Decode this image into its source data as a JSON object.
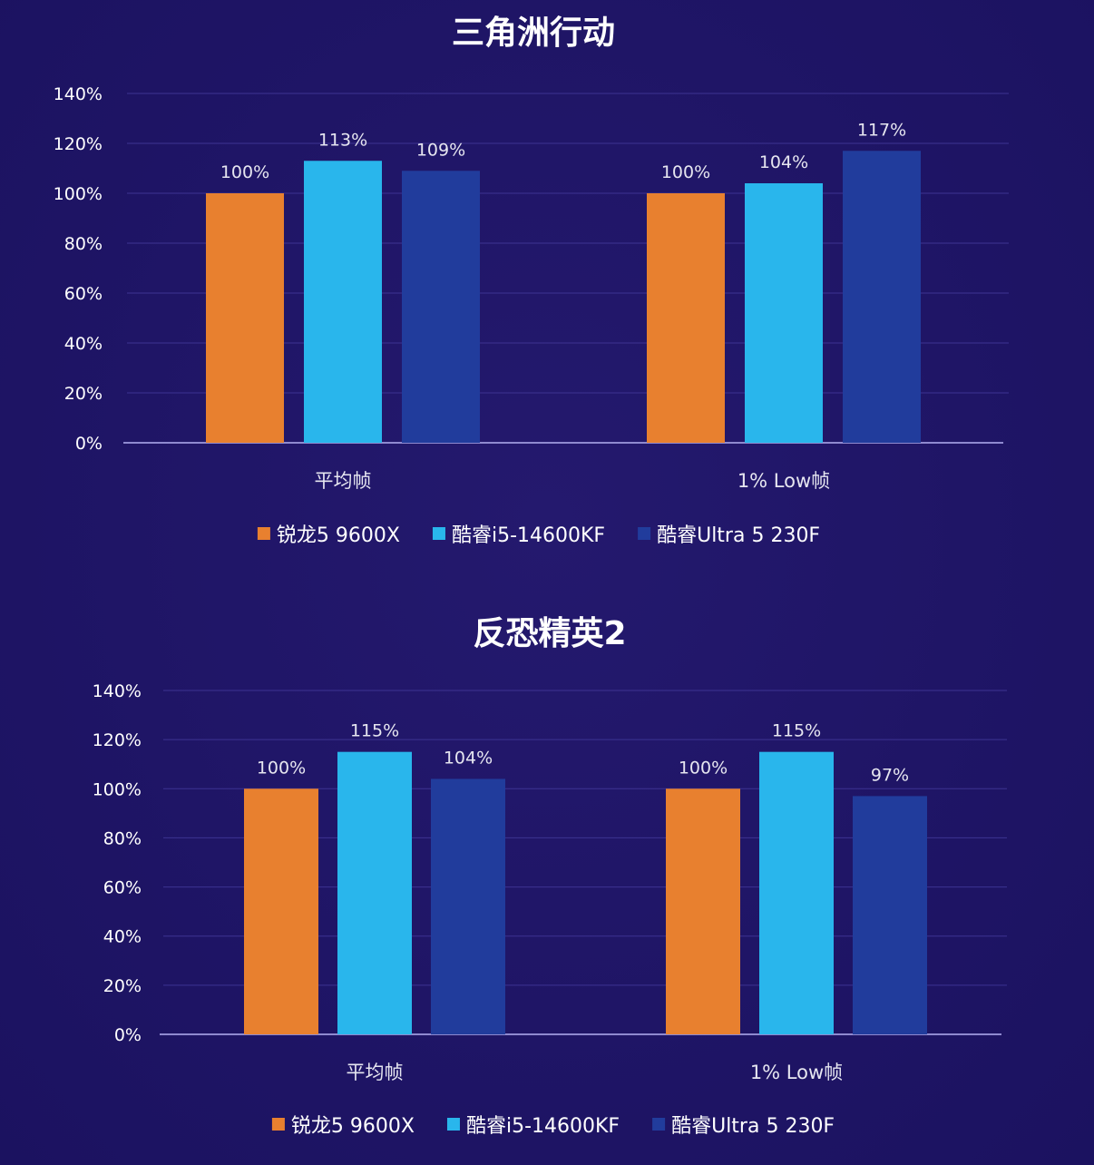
{
  "chart_data": [
    {
      "type": "bar",
      "title": "三角洲行动",
      "categories": [
        "平均帧",
        "1% Low帧"
      ],
      "series": [
        {
          "name": "锐龙5 9600X",
          "color": "#e8802f",
          "values": [
            100,
            100
          ],
          "labels": [
            "100%",
            "100%"
          ]
        },
        {
          "name": "酷睿i5-14600KF",
          "color": "#29b6ec",
          "values": [
            113,
            104
          ],
          "labels": [
            "113%",
            "104%"
          ]
        },
        {
          "name": "酷睿Ultra 5 230F",
          "color": "#213c9c",
          "values": [
            109,
            117
          ],
          "labels": [
            "109%",
            "117%"
          ]
        }
      ],
      "ylim": [
        0,
        140
      ],
      "y_ticks": [
        0,
        20,
        40,
        60,
        80,
        100,
        120,
        140
      ],
      "y_tick_labels": [
        "0%",
        "20%",
        "40%",
        "60%",
        "80%",
        "100%",
        "120%",
        "140%"
      ],
      "grid": true,
      "legend_position": "bottom"
    },
    {
      "type": "bar",
      "title": "反恐精英2",
      "categories": [
        "平均帧",
        "1% Low帧"
      ],
      "series": [
        {
          "name": "锐龙5 9600X",
          "color": "#e8802f",
          "values": [
            100,
            100
          ],
          "labels": [
            "100%",
            "100%"
          ]
        },
        {
          "name": "酷睿i5-14600KF",
          "color": "#29b6ec",
          "values": [
            115,
            115
          ],
          "labels": [
            "115%",
            "115%"
          ]
        },
        {
          "name": "酷睿Ultra 5 230F",
          "color": "#213c9c",
          "values": [
            104,
            97
          ],
          "labels": [
            "104%",
            "97%"
          ]
        }
      ],
      "ylim": [
        0,
        140
      ],
      "y_ticks": [
        0,
        20,
        40,
        60,
        80,
        100,
        120,
        140
      ],
      "y_tick_labels": [
        "0%",
        "20%",
        "40%",
        "60%",
        "80%",
        "100%",
        "120%",
        "140%"
      ],
      "grid": true,
      "legend_position": "bottom"
    }
  ]
}
